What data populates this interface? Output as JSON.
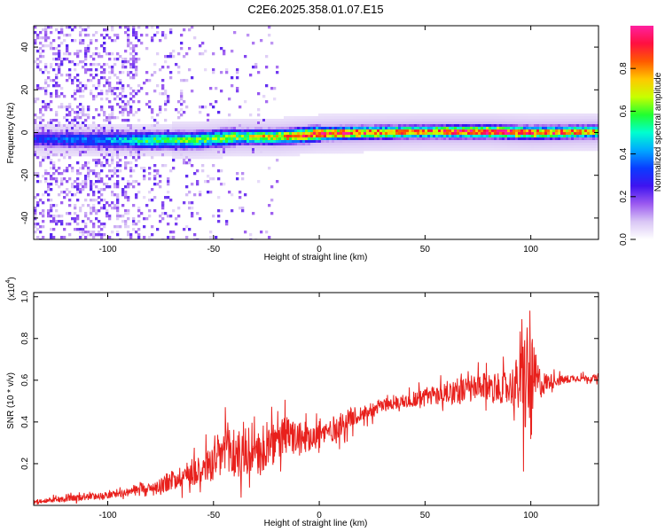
{
  "title": "C2E6.2025.358.01.07.E15",
  "colors": {
    "snr_line": "#e8201c",
    "background": "#ffffff",
    "colormap": [
      "#ffffff",
      "#d9c6f5",
      "#9b59f0",
      "#3f14f0",
      "#0a3cff",
      "#00a8ff",
      "#00ffd0",
      "#20ff30",
      "#c8ff00",
      "#ffc800",
      "#ff5a00",
      "#ff1040",
      "#ff20a0"
    ]
  },
  "chart_data": [
    {
      "type": "heatmap",
      "title": "C2E6.2025.358.01.07.E15",
      "xlabel": "Height of straight line (km)",
      "ylabel": "Frequency (Hz)",
      "xlim": [
        -135,
        132
      ],
      "ylim": [
        -50,
        50
      ],
      "x_ticks": [
        -100,
        -50,
        0,
        50,
        100
      ],
      "y_ticks": [
        -40,
        -20,
        0,
        20,
        40
      ],
      "grid": false,
      "colorbar": {
        "label": "Normalized spectral amplitude",
        "range": [
          0,
          1
        ],
        "ticks": [
          "0.0",
          "0.2",
          "0.4",
          "0.6",
          "0.8"
        ],
        "tick_values": [
          0.0,
          0.2,
          0.4,
          0.6,
          0.8
        ]
      },
      "ridge_center_hz": [
        {
          "x": -135,
          "y": -2.5
        },
        {
          "x": -100,
          "y": -3
        },
        {
          "x": -60,
          "y": -3
        },
        {
          "x": -40,
          "y": -1.5
        },
        {
          "x": -20,
          "y": -1.5
        },
        {
          "x": 0,
          "y": 0
        },
        {
          "x": 20,
          "y": 0.5
        },
        {
          "x": 50,
          "y": 1
        },
        {
          "x": 80,
          "y": 1
        },
        {
          "x": 100,
          "y": 0.5
        },
        {
          "x": 132,
          "y": 1
        }
      ],
      "ridge_peak_amplitude": [
        {
          "x": -135,
          "v": 0.3
        },
        {
          "x": -100,
          "v": 0.4
        },
        {
          "x": -80,
          "v": 0.55
        },
        {
          "x": -50,
          "v": 0.6
        },
        {
          "x": -20,
          "v": 0.75
        },
        {
          "x": 0,
          "v": 0.95
        },
        {
          "x": 30,
          "v": 0.85
        },
        {
          "x": 50,
          "v": 0.8
        },
        {
          "x": 60,
          "v": 0.9
        },
        {
          "x": 80,
          "v": 0.95
        },
        {
          "x": 100,
          "v": 0.9
        },
        {
          "x": 132,
          "v": 0.75
        }
      ]
    },
    {
      "type": "line",
      "xlabel": "Height of straight line (km)",
      "ylabel": "SNR (10 * v/v)",
      "y_multiplier": "(x10",
      "y_multiplier_exp": "4",
      "y_multiplier_close": ")",
      "xlim": [
        -135,
        132
      ],
      "ylim": [
        0,
        1.02
      ],
      "x_ticks": [
        -100,
        -50,
        0,
        50,
        100
      ],
      "y_ticks": [
        0.2,
        0.4,
        0.6,
        0.8,
        1.0
      ],
      "grid": false,
      "series": [
        {
          "x": [
            -135,
            -120,
            -110,
            -100,
            -90,
            -85,
            -80,
            -70,
            -60,
            -50,
            -45,
            -40,
            -35,
            -30,
            -25,
            -20,
            -15,
            -10,
            -5,
            0,
            5,
            10,
            15,
            20,
            25,
            30,
            35,
            40,
            45,
            50,
            55,
            60,
            65,
            70,
            75,
            80,
            85,
            90,
            95,
            98,
            100,
            102,
            105,
            110,
            115,
            120,
            125,
            132
          ],
          "y": [
            0.02,
            0.03,
            0.04,
            0.05,
            0.06,
            0.09,
            0.08,
            0.12,
            0.16,
            0.2,
            0.26,
            0.25,
            0.23,
            0.24,
            0.27,
            0.3,
            0.34,
            0.31,
            0.34,
            0.33,
            0.36,
            0.38,
            0.42,
            0.44,
            0.46,
            0.48,
            0.49,
            0.5,
            0.51,
            0.52,
            0.53,
            0.54,
            0.55,
            0.55,
            0.56,
            0.57,
            0.56,
            0.57,
            0.58,
            0.6,
            0.55,
            0.6,
            0.58,
            0.6,
            0.6,
            0.61,
            0.61,
            0.61
          ],
          "noise_envelope": [
            0.01,
            0.02,
            0.02,
            0.02,
            0.02,
            0.03,
            0.03,
            0.06,
            0.08,
            0.12,
            0.18,
            0.18,
            0.12,
            0.12,
            0.14,
            0.12,
            0.12,
            0.1,
            0.1,
            0.08,
            0.08,
            0.07,
            0.06,
            0.05,
            0.05,
            0.04,
            0.04,
            0.04,
            0.05,
            0.06,
            0.06,
            0.07,
            0.08,
            0.08,
            0.08,
            0.09,
            0.09,
            0.1,
            0.2,
            0.4,
            0.35,
            0.18,
            0.08,
            0.04,
            0.03,
            0.02,
            0.02,
            0.02
          ]
        }
      ]
    }
  ]
}
